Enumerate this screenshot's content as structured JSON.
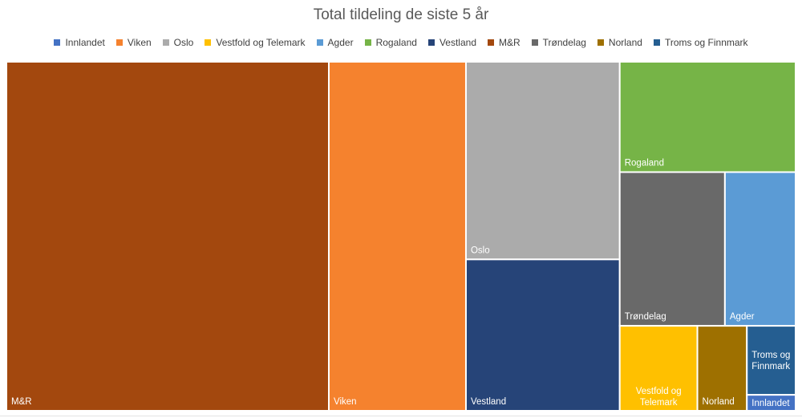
{
  "chart_data": {
    "type": "treemap",
    "title": "Total tildeling de siste 5 år",
    "legend_position": "top",
    "categories": [
      "Innlandet",
      "Viken",
      "Oslo",
      "Vestfold og Telemark",
      "Agder",
      "Rogaland",
      "Vestland",
      "M&R",
      "Trøndelag",
      "Norland",
      "Troms og Finnmark"
    ],
    "series": [
      {
        "name": "Innlandet",
        "value": 1.2,
        "color": "#4472C4",
        "label": "Innlandet"
      },
      {
        "name": "Viken",
        "value": 74,
        "color": "#F5822E",
        "label": "Viken"
      },
      {
        "name": "Oslo",
        "value": 47,
        "color": "#ABABAB",
        "label": "Oslo"
      },
      {
        "name": "Vestfold og Telemark",
        "value": 10.2,
        "color": "#FFC000",
        "label": "Vestfold og\nTelemark"
      },
      {
        "name": "Agder",
        "value": 16.8,
        "color": "#5B9BD5",
        "label": "Agder"
      },
      {
        "name": "Rogaland",
        "value": 30,
        "color": "#76B447",
        "label": "Rogaland"
      },
      {
        "name": "Vestland",
        "value": 36,
        "color": "#264478",
        "label": "Vestland"
      },
      {
        "name": "M&R",
        "value": 174,
        "color": "#A3480E",
        "label": "M&R"
      },
      {
        "name": "Trøndelag",
        "value": 25,
        "color": "#696969",
        "label": "Trøndelag"
      },
      {
        "name": "Norland",
        "value": 6.5,
        "color": "#9E7000",
        "label": "Norland"
      },
      {
        "name": "Troms og Finnmark",
        "value": 5.2,
        "color": "#255E91",
        "label": "Troms og\nFinnmark"
      }
    ]
  }
}
